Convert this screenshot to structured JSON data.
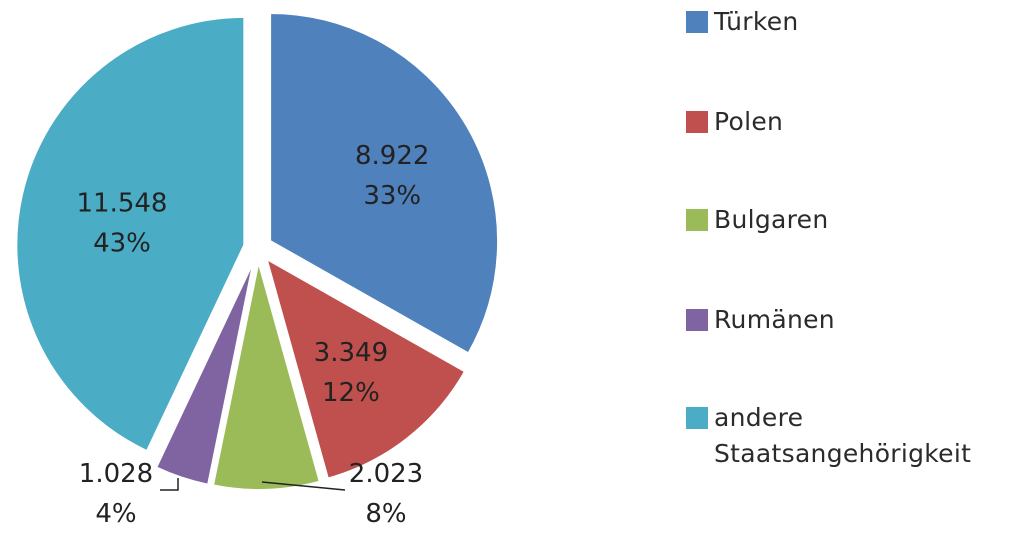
{
  "chart_data": {
    "type": "pie",
    "exploded": true,
    "legend_position": "right",
    "slices": [
      {
        "name": "Türken",
        "value": 8922,
        "value_label": "8.922",
        "percent_label": "33%",
        "color": "#4F81BD"
      },
      {
        "name": "Polen",
        "value": 3349,
        "value_label": "3.349",
        "percent_label": "12%",
        "color": "#C0504D"
      },
      {
        "name": "Bulgaren",
        "value": 2023,
        "value_label": "2.023",
        "percent_label": "8%",
        "color": "#9BBB59"
      },
      {
        "name": "Rumänen",
        "value": 1028,
        "value_label": "1.028",
        "percent_label": "4%",
        "color": "#8064A2"
      },
      {
        "name": "andere Staatsangehörigkeit",
        "value": 11548,
        "value_label": "11.548",
        "percent_label": "43%",
        "color": "#4BACC6"
      }
    ]
  }
}
